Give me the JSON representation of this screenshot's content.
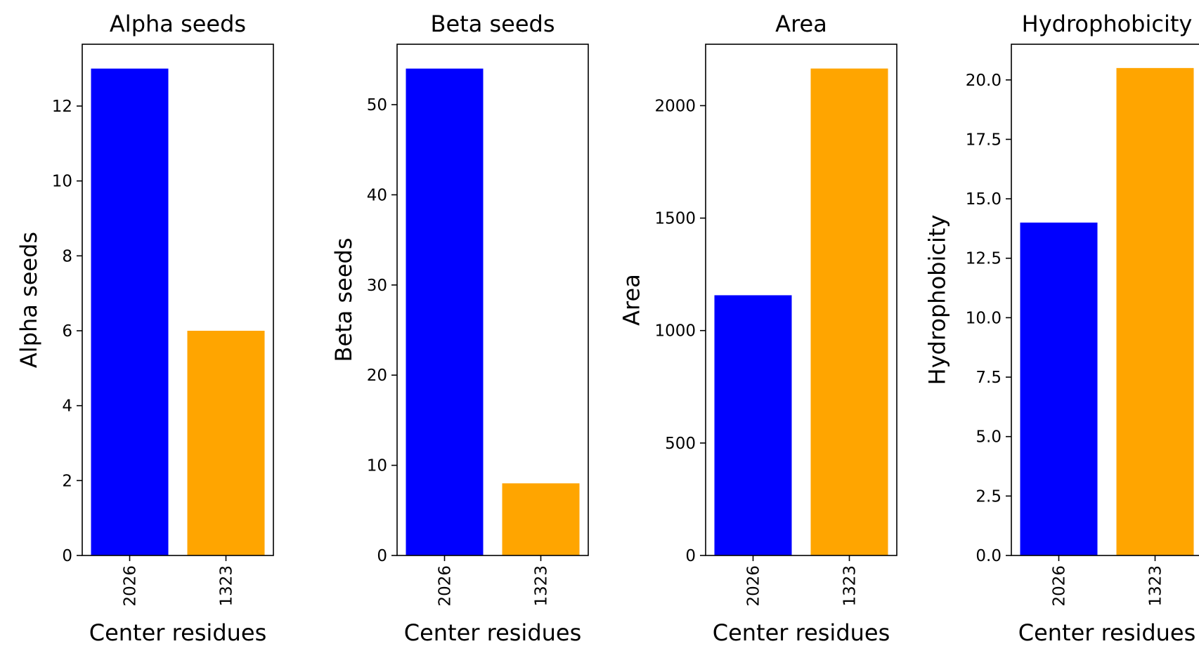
{
  "chart_data": [
    {
      "type": "bar",
      "title": "Alpha seeds",
      "xlabel": "Center residues",
      "ylabel": "Alpha seeds",
      "categories": [
        "2026",
        "1323"
      ],
      "values": [
        13,
        6
      ],
      "colors": [
        "#0000ff",
        "#ffa500"
      ],
      "ylim": [
        0,
        13.65
      ],
      "yticks": [
        0,
        2,
        4,
        6,
        8,
        10,
        12
      ],
      "ytick_labels": [
        "0",
        "2",
        "4",
        "6",
        "8",
        "10",
        "12"
      ],
      "grid": false
    },
    {
      "type": "bar",
      "title": "Beta seeds",
      "xlabel": "Center residues",
      "ylabel": "Beta seeds",
      "categories": [
        "2026",
        "1323"
      ],
      "values": [
        54,
        8
      ],
      "colors": [
        "#0000ff",
        "#ffa500"
      ],
      "ylim": [
        0,
        56.7
      ],
      "yticks": [
        0,
        10,
        20,
        30,
        40,
        50
      ],
      "ytick_labels": [
        "0",
        "10",
        "20",
        "30",
        "40",
        "50"
      ],
      "grid": false
    },
    {
      "type": "bar",
      "title": "Area",
      "xlabel": "Center residues",
      "ylabel": "Area",
      "categories": [
        "2026",
        "1323"
      ],
      "values": [
        1157,
        2165
      ],
      "colors": [
        "#0000ff",
        "#ffa500"
      ],
      "ylim": [
        0,
        2273
      ],
      "yticks": [
        0,
        500,
        1000,
        1500,
        2000
      ],
      "ytick_labels": [
        "0",
        "500",
        "1000",
        "1500",
        "2000"
      ],
      "grid": false
    },
    {
      "type": "bar",
      "title": "Hydrophobicity",
      "xlabel": "Center residues",
      "ylabel": "Hydrophobicity",
      "categories": [
        "2026",
        "1323"
      ],
      "values": [
        14.0,
        20.5
      ],
      "colors": [
        "#0000ff",
        "#ffa500"
      ],
      "ylim": [
        0,
        21.5
      ],
      "yticks": [
        0,
        2.5,
        5,
        7.5,
        10,
        12.5,
        15,
        17.5,
        20
      ],
      "ytick_labels": [
        "0.0",
        "2.5",
        "5.0",
        "7.5",
        "10.0",
        "12.5",
        "15.0",
        "17.5",
        "20.0"
      ],
      "grid": false
    }
  ]
}
